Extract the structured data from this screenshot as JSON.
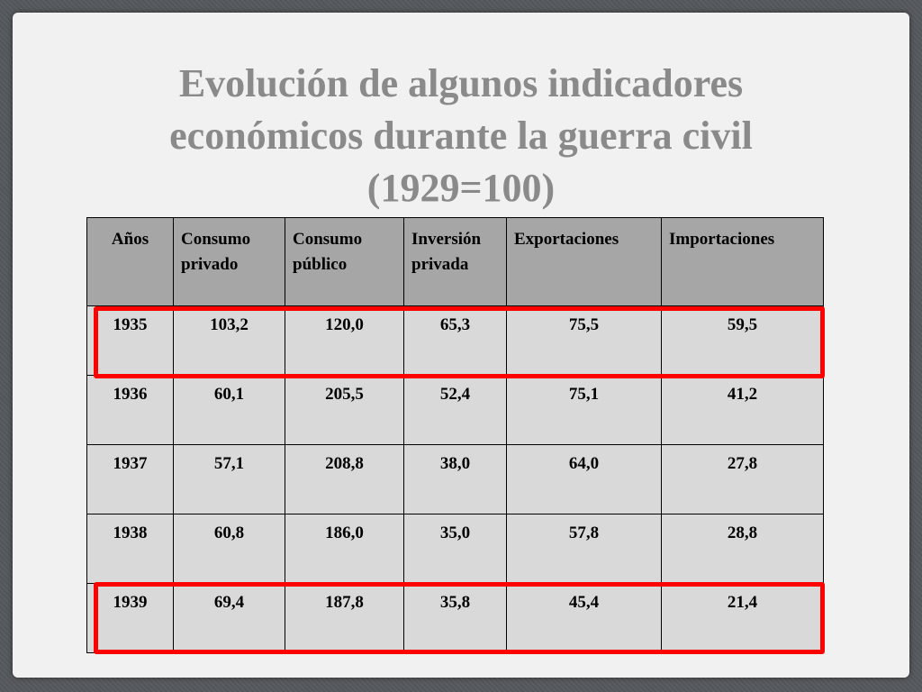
{
  "title": {
    "line1": "Evolución de algunos indicadores",
    "line2": "económicos durante la guerra civil",
    "line3": "(1929=100)"
  },
  "table": {
    "headers": [
      [
        "Años"
      ],
      [
        "Consumo",
        "privado"
      ],
      [
        "Consumo",
        "público"
      ],
      [
        "Inversión",
        "privada"
      ],
      [
        "Exportaciones"
      ],
      [
        "Importaciones"
      ]
    ],
    "rows": [
      [
        "1935",
        "103,2",
        "120,0",
        "65,3",
        "75,5",
        "59,5"
      ],
      [
        "1936",
        "60,1",
        "205,5",
        "52,4",
        "75,1",
        "41,2"
      ],
      [
        "1937",
        "57,1",
        "208,8",
        "38,0",
        "64,0",
        "27,8"
      ],
      [
        "1938",
        "60,8",
        "186,0",
        "35,0",
        "57,8",
        "28,8"
      ],
      [
        "1939",
        "69,4",
        "187,8",
        "35,8",
        "45,4",
        "21,4"
      ]
    ]
  },
  "colors": {
    "highlight": "#ff0000",
    "header_bg": "#a6a6a6",
    "cell_bg": "#d9d9d9",
    "title": "#8a8a8a"
  }
}
